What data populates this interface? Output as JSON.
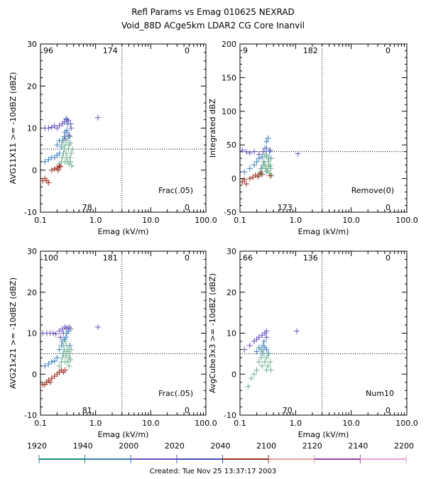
{
  "header": {
    "title": "Refl Params vs Emag   010625   NEXRAD",
    "subtitle": "Void_88D ACge5km LDAR2 CG Core Inanvil"
  },
  "footer": {
    "created": "Created: Tue Nov 25 13:37:17 2003"
  },
  "time_bar": {
    "labels": [
      "1920",
      "1940",
      "2000",
      "2020",
      "2040",
      "2100",
      "2120",
      "2140",
      "2200"
    ],
    "segments": [
      {
        "color": "#1e8c80"
      },
      {
        "color": "#3a7fbf"
      },
      {
        "color": "#6a4fb8"
      },
      {
        "color": "#3d4fb0"
      },
      {
        "color": "#9a2a1a"
      },
      {
        "color": "#e0a0a0"
      },
      {
        "color": "#9a40b0"
      },
      {
        "color": "#e8a0d8"
      }
    ]
  },
  "colors": {
    "purple": "#6a4fb8",
    "blue": "#3a7fbf",
    "green": "#6fb090",
    "red": "#9a2a1a"
  },
  "chart_data": [
    {
      "type": "scatter",
      "xscale": "log",
      "xlim": [
        0.1,
        100
      ],
      "ylim": [
        -10,
        30
      ],
      "xlabel": "Emag (kV/m)",
      "ylabel": "AVG11X11 >= -10dBZ (dBZ)",
      "xticks": [
        "0.1",
        "1.0",
        "10.0",
        "100.0"
      ],
      "yticks": [
        "-10",
        "0",
        "10",
        "20",
        "30"
      ],
      "vline": 3.0,
      "hline": 5,
      "quadrant_counts": {
        "ul": "96",
        "ur": "0",
        "ll": "78",
        "lr": "0",
        "top": "174"
      },
      "annotation": "Frac(.05)",
      "series": [
        {
          "color": "purple",
          "points": [
            [
              0.12,
              10
            ],
            [
              0.14,
              10
            ],
            [
              0.16,
              10.2
            ],
            [
              0.18,
              10.5
            ],
            [
              0.2,
              10
            ],
            [
              0.22,
              10.6
            ],
            [
              0.25,
              11
            ],
            [
              0.27,
              11.5
            ],
            [
              0.3,
              12
            ],
            [
              0.32,
              11.8
            ],
            [
              0.35,
              11
            ],
            [
              0.36,
              10
            ],
            [
              0.3,
              9
            ],
            [
              0.33,
              8.2
            ],
            [
              1.1,
              12.5
            ],
            [
              0.28,
              7.5
            ]
          ]
        },
        {
          "color": "blue",
          "points": [
            [
              0.12,
              2
            ],
            [
              0.14,
              2.5
            ],
            [
              0.16,
              3
            ],
            [
              0.18,
              3
            ],
            [
              0.2,
              3.5
            ],
            [
              0.22,
              4
            ],
            [
              0.24,
              5.5
            ],
            [
              0.25,
              7
            ],
            [
              0.27,
              8
            ],
            [
              0.28,
              9
            ],
            [
              0.3,
              9.5
            ],
            [
              0.22,
              7
            ],
            [
              0.2,
              6
            ],
            [
              0.26,
              4
            ],
            [
              0.34,
              8
            ],
            [
              0.31,
              11
            ],
            [
              0.29,
              12.2
            ]
          ]
        },
        {
          "color": "green",
          "points": [
            [
              0.22,
              1.5
            ],
            [
              0.24,
              2
            ],
            [
              0.25,
              3
            ],
            [
              0.26,
              4
            ],
            [
              0.27,
              5
            ],
            [
              0.28,
              6
            ],
            [
              0.29,
              4
            ],
            [
              0.3,
              3
            ],
            [
              0.31,
              2
            ],
            [
              0.32,
              5
            ],
            [
              0.33,
              6
            ],
            [
              0.34,
              3
            ],
            [
              0.35,
              2
            ],
            [
              0.36,
              4
            ],
            [
              0.37,
              1
            ],
            [
              0.38,
              5
            ],
            [
              0.3,
              7
            ],
            [
              0.32,
              8
            ],
            [
              0.28,
              2
            ],
            [
              0.26,
              7
            ],
            [
              0.24,
              6
            ],
            [
              0.35,
              6.5
            ],
            [
              0.33,
              1.5
            ]
          ]
        },
        {
          "color": "red",
          "points": [
            [
              0.11,
              -2.5
            ],
            [
              0.12,
              -2
            ],
            [
              0.13,
              -2.5
            ],
            [
              0.14,
              -3
            ],
            [
              0.16,
              0
            ],
            [
              0.18,
              0.3
            ],
            [
              0.2,
              0.5
            ],
            [
              0.21,
              0
            ],
            [
              0.22,
              1
            ],
            [
              0.23,
              0.8
            ]
          ]
        }
      ]
    },
    {
      "type": "scatter",
      "xscale": "log",
      "xlim": [
        0.1,
        100
      ],
      "ylim": [
        -50,
        200
      ],
      "xlabel": "Emag (kV/m)",
      "ylabel": "Integrated dBZ",
      "xticks": [
        "0.1",
        "1.0",
        "10.0",
        "100.0"
      ],
      "yticks": [
        "-50",
        "0",
        "50",
        "100",
        "150",
        "200"
      ],
      "vline": 3.0,
      "hline": 40,
      "quadrant_counts": {
        "ul": "9",
        "ur": "0",
        "ll": "173",
        "lr": "0",
        "top": "182"
      },
      "annotation": "Remove(0)",
      "series": [
        {
          "color": "purple",
          "points": [
            [
              0.11,
              42
            ],
            [
              0.13,
              40
            ],
            [
              0.15,
              38
            ],
            [
              0.18,
              40
            ],
            [
              0.22,
              36
            ],
            [
              0.26,
              40
            ],
            [
              0.3,
              45
            ],
            [
              1.1,
              37
            ],
            [
              0.35,
              42
            ]
          ]
        },
        {
          "color": "blue",
          "points": [
            [
              0.12,
              10
            ],
            [
              0.15,
              15
            ],
            [
              0.18,
              20
            ],
            [
              0.2,
              25
            ],
            [
              0.22,
              30
            ],
            [
              0.25,
              32
            ],
            [
              0.28,
              45
            ],
            [
              0.3,
              55
            ],
            [
              0.32,
              60
            ],
            [
              0.3,
              35
            ],
            [
              0.27,
              25
            ],
            [
              0.24,
              15
            ],
            [
              0.34,
              40
            ],
            [
              0.36,
              30
            ]
          ]
        },
        {
          "color": "green",
          "points": [
            [
              0.22,
              5
            ],
            [
              0.24,
              10
            ],
            [
              0.25,
              15
            ],
            [
              0.26,
              20
            ],
            [
              0.27,
              25
            ],
            [
              0.28,
              20
            ],
            [
              0.29,
              15
            ],
            [
              0.3,
              10
            ],
            [
              0.31,
              12
            ],
            [
              0.32,
              25
            ],
            [
              0.33,
              30
            ],
            [
              0.34,
              8
            ],
            [
              0.35,
              20
            ],
            [
              0.36,
              15
            ],
            [
              0.37,
              5
            ],
            [
              0.3,
              32
            ],
            [
              0.28,
              35
            ],
            [
              0.33,
              18
            ]
          ]
        },
        {
          "color": "red",
          "points": [
            [
              0.11,
              -5
            ],
            [
              0.12,
              -2
            ],
            [
              0.13,
              -8
            ],
            [
              0.15,
              0
            ],
            [
              0.17,
              2
            ],
            [
              0.19,
              5
            ],
            [
              0.21,
              3
            ],
            [
              0.23,
              8
            ],
            [
              0.25,
              6
            ],
            [
              0.35,
              4
            ]
          ]
        }
      ]
    },
    {
      "type": "scatter",
      "xscale": "log",
      "xlim": [
        0.1,
        100
      ],
      "ylim": [
        -10,
        30
      ],
      "xlabel": "Emag (kV/m)",
      "ylabel": "AVG21x21 >= -10dBZ (dBZ)",
      "xticks": [
        "0.1",
        "1.0",
        "10.0",
        "100.0"
      ],
      "yticks": [
        "-10",
        "0",
        "10",
        "20",
        "30"
      ],
      "vline": 3.0,
      "hline": 5,
      "quadrant_counts": {
        "ul": "100",
        "ur": "0",
        "ll": "81",
        "lr": "0",
        "top": "181"
      },
      "annotation": "Frac(.05)",
      "series": [
        {
          "color": "purple",
          "points": [
            [
              0.11,
              10
            ],
            [
              0.13,
              10
            ],
            [
              0.15,
              10
            ],
            [
              0.17,
              10
            ],
            [
              0.19,
              9.8
            ],
            [
              0.22,
              10.5
            ],
            [
              0.25,
              11
            ],
            [
              0.28,
              11.5
            ],
            [
              0.3,
              11.2
            ],
            [
              0.33,
              11.5
            ],
            [
              0.35,
              11
            ],
            [
              1.1,
              11.5
            ],
            [
              0.26,
              10
            ],
            [
              0.23,
              9
            ]
          ]
        },
        {
          "color": "blue",
          "points": [
            [
              0.12,
              2
            ],
            [
              0.14,
              2.5
            ],
            [
              0.16,
              3
            ],
            [
              0.18,
              3.2
            ],
            [
              0.2,
              4
            ],
            [
              0.22,
              6
            ],
            [
              0.24,
              7
            ],
            [
              0.25,
              8
            ],
            [
              0.27,
              8.5
            ],
            [
              0.29,
              9
            ],
            [
              0.3,
              10
            ],
            [
              0.26,
              5
            ],
            [
              0.32,
              10.5
            ],
            [
              0.34,
              7
            ]
          ]
        },
        {
          "color": "green",
          "points": [
            [
              0.22,
              2
            ],
            [
              0.24,
              3
            ],
            [
              0.25,
              4
            ],
            [
              0.26,
              5
            ],
            [
              0.27,
              6
            ],
            [
              0.28,
              3
            ],
            [
              0.29,
              4.5
            ],
            [
              0.3,
              5.5
            ],
            [
              0.31,
              3
            ],
            [
              0.32,
              6
            ],
            [
              0.33,
              4
            ],
            [
              0.34,
              5
            ],
            [
              0.35,
              3.5
            ],
            [
              0.36,
              6
            ],
            [
              0.3,
              7
            ],
            [
              0.28,
              8
            ],
            [
              0.26,
              7
            ],
            [
              0.33,
              2
            ]
          ]
        },
        {
          "color": "red",
          "points": [
            [
              0.11,
              -2.5
            ],
            [
              0.12,
              -2.5
            ],
            [
              0.13,
              -2
            ],
            [
              0.14,
              -1.5
            ],
            [
              0.15,
              -2
            ],
            [
              0.16,
              -1
            ],
            [
              0.18,
              -0.5
            ],
            [
              0.2,
              0
            ],
            [
              0.22,
              0.5
            ],
            [
              0.24,
              1
            ],
            [
              0.26,
              0.5
            ],
            [
              0.28,
              1
            ]
          ]
        }
      ]
    },
    {
      "type": "scatter",
      "xscale": "log",
      "xlim": [
        0.1,
        100
      ],
      "ylim": [
        -10,
        30
      ],
      "xlabel": "Emag (kV/m)",
      "ylabel": "AvgCube3x3 >= -10dBZ (dBZ)",
      "xticks": [
        "0.1",
        "1.0",
        "10.0",
        "100.0"
      ],
      "yticks": [
        "-10",
        "0",
        "10",
        "20",
        "30"
      ],
      "vline": 3.0,
      "hline": 5,
      "quadrant_counts": {
        "ul": "66",
        "ur": "0",
        "ll": "70",
        "lr": "0",
        "top": "136"
      },
      "annotation": "Num10",
      "series": [
        {
          "color": "purple",
          "points": [
            [
              0.12,
              6
            ],
            [
              0.15,
              7
            ],
            [
              0.18,
              8
            ],
            [
              0.2,
              8.5
            ],
            [
              0.22,
              9
            ],
            [
              0.25,
              9.5
            ],
            [
              0.28,
              10
            ],
            [
              0.3,
              10.5
            ],
            [
              1.05,
              10.5
            ],
            [
              0.3,
              9
            ]
          ]
        },
        {
          "color": "blue",
          "points": [
            [
              0.2,
              5.5
            ],
            [
              0.22,
              6.5
            ],
            [
              0.24,
              6
            ],
            [
              0.26,
              7
            ],
            [
              0.28,
              6.5
            ],
            [
              0.3,
              6
            ],
            [
              0.32,
              5
            ],
            [
              0.27,
              8
            ],
            [
              0.25,
              5
            ]
          ]
        },
        {
          "color": "green",
          "points": [
            [
              0.14,
              -3
            ],
            [
              0.16,
              -1
            ],
            [
              0.18,
              0
            ],
            [
              0.2,
              1
            ],
            [
              0.22,
              3
            ],
            [
              0.24,
              4
            ],
            [
              0.25,
              2
            ],
            [
              0.27,
              5
            ],
            [
              0.28,
              3
            ],
            [
              0.3,
              4
            ],
            [
              0.32,
              2
            ],
            [
              0.33,
              5
            ],
            [
              0.35,
              3
            ],
            [
              0.36,
              1
            ],
            [
              0.3,
              1
            ],
            [
              0.26,
              6
            ]
          ]
        }
      ]
    }
  ]
}
